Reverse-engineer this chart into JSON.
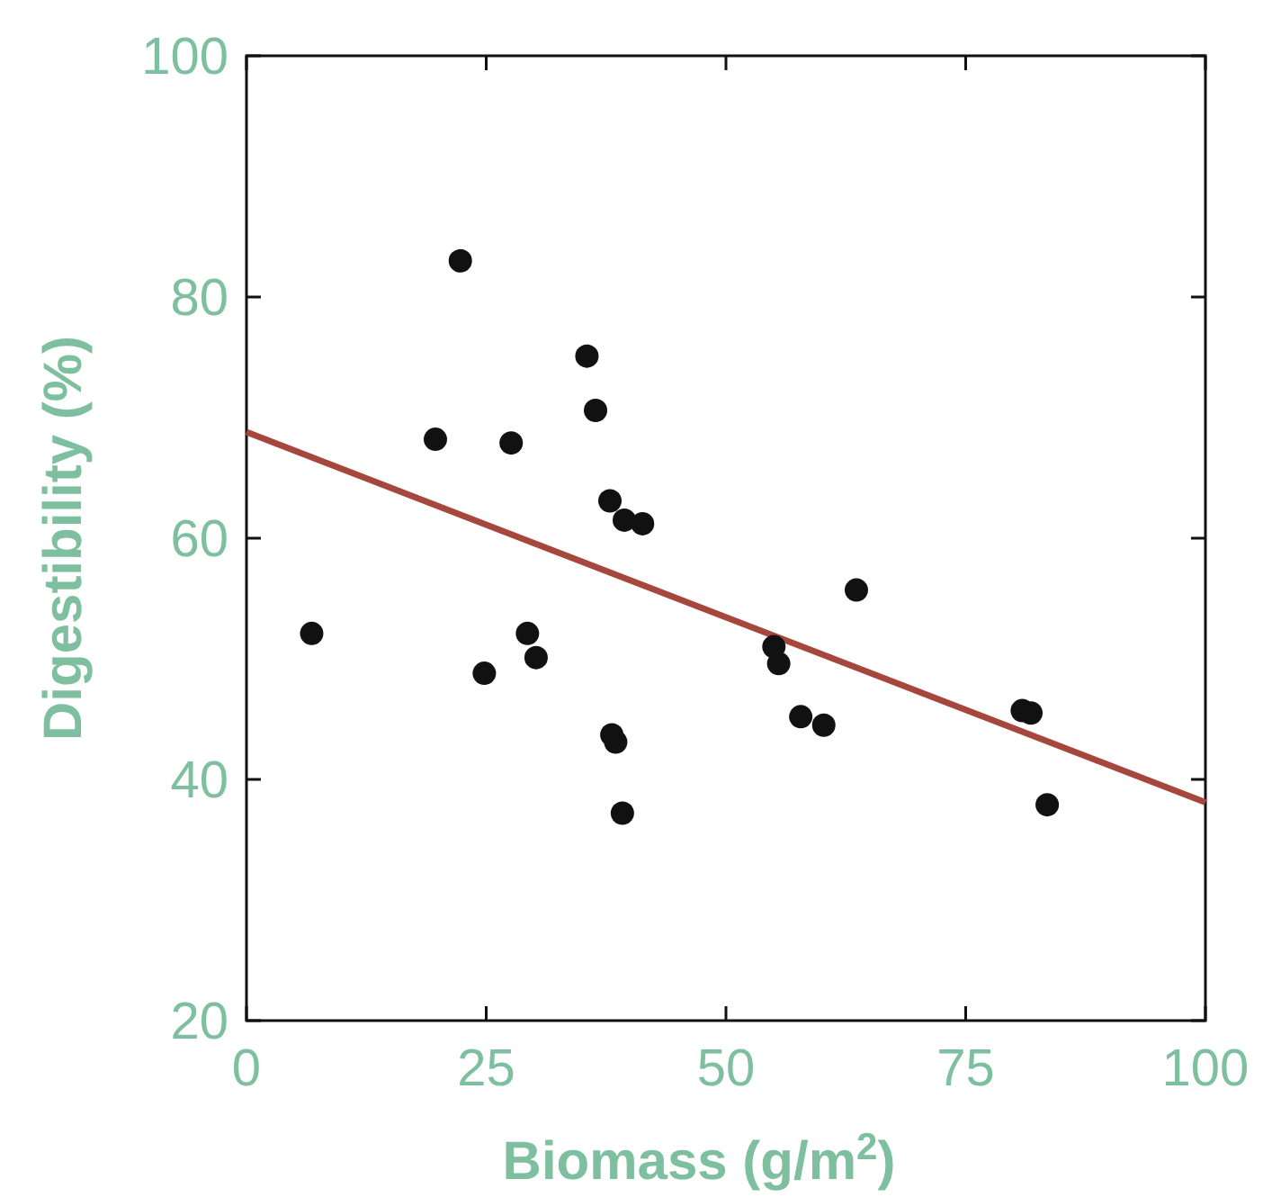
{
  "chart_data": {
    "type": "scatter",
    "xlabel": "Biomass (g/m$^{2}$)",
    "ylabel": "Digestibility (%)",
    "xlim": [
      0,
      100
    ],
    "ylim": [
      20,
      100
    ],
    "xticks": [
      0,
      25,
      50,
      75,
      100
    ],
    "yticks": [
      20,
      40,
      60,
      80,
      100
    ],
    "grid": false,
    "series": [
      {
        "marker": "circle",
        "color": "#111111",
        "x": [
          6.8,
          19.7,
          22.3,
          24.8,
          27.6,
          29.3,
          30.2,
          35.5,
          36.4,
          37.9,
          39.4,
          41.3,
          38.1,
          38.5,
          39.2,
          55.0,
          55.5,
          57.8,
          60.2,
          63.6,
          80.9,
          81.8,
          83.5
        ],
        "values": [
          52.1,
          68.2,
          83.0,
          48.8,
          67.9,
          52.1,
          50.1,
          75.1,
          70.6,
          63.1,
          61.5,
          61.2,
          43.7,
          43.1,
          37.2,
          51.0,
          49.6,
          45.2,
          44.5,
          55.7,
          45.7,
          45.5,
          37.9
        ]
      },
      {
        "type": "line",
        "color": "#a5473d",
        "x": [
          0,
          100
        ],
        "values": [
          68.8,
          38.1
        ],
        "line_style": "solid"
      }
    ]
  }
}
